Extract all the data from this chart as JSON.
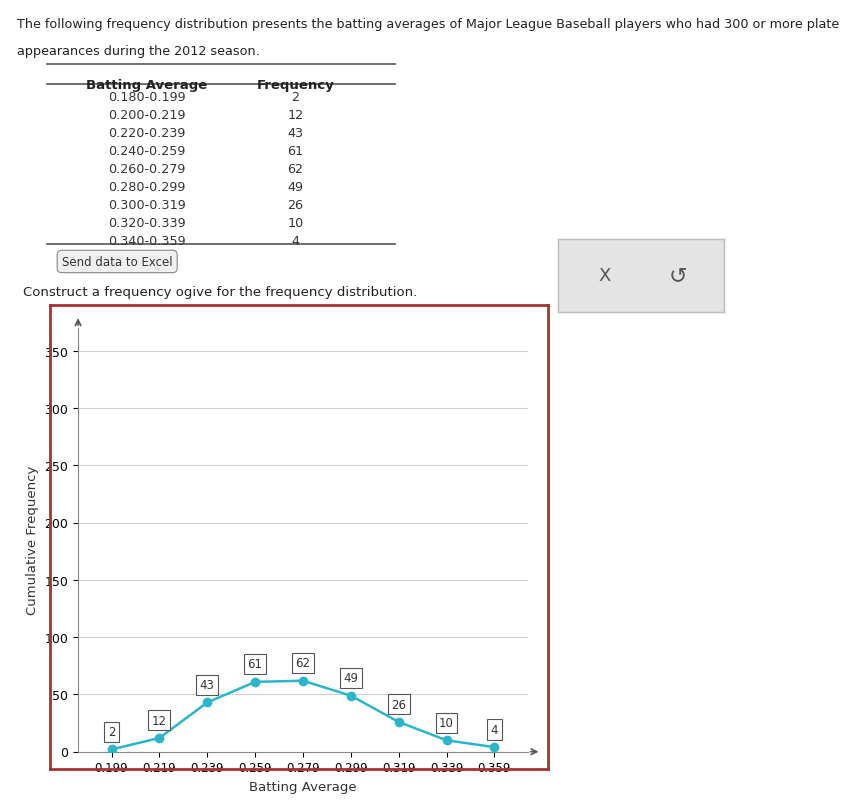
{
  "description_text_line1": "The following frequency distribution presents the batting averages of Major League Baseball players who had 300 or more plate",
  "description_text_line2": "appearances during the 2012 season.",
  "table_headers": [
    "Batting Average",
    "Frequency"
  ],
  "table_rows": [
    [
      "0.180-0.199",
      "2"
    ],
    [
      "0.200-0.219",
      "12"
    ],
    [
      "0.220-0.239",
      "43"
    ],
    [
      "0.240-0.259",
      "61"
    ],
    [
      "0.260-0.279",
      "62"
    ],
    [
      "0.280-0.299",
      "49"
    ],
    [
      "0.300-0.319",
      "26"
    ],
    [
      "0.320-0.339",
      "10"
    ],
    [
      "0.340-0.359",
      "4"
    ]
  ],
  "button_text": "Send data to Excel",
  "instruction_text": "Construct a frequency ogive for the frequency distribution.",
  "x_labels": [
    "0.199",
    "0.219",
    "0.239",
    "0.259",
    "0.279",
    "0.299",
    "0.319",
    "0.339",
    "0.359"
  ],
  "x_values": [
    0.199,
    0.219,
    0.239,
    0.259,
    0.279,
    0.299,
    0.319,
    0.339,
    0.359
  ],
  "y_values": [
    2,
    12,
    43,
    61,
    62,
    49,
    26,
    10,
    4
  ],
  "y_labels": [
    0,
    50,
    100,
    150,
    200,
    250,
    300,
    350
  ],
  "xlabel": "Batting Average",
  "ylabel": "Cumulative Frequency",
  "line_color": "#2bb5c8",
  "marker_color": "#2bb5c8",
  "bg_color": "#ffffff",
  "plot_bg_color": "#ffffff",
  "border_color": "#a83232",
  "grid_color": "#d0d0d0",
  "ylim": [
    0,
    370
  ],
  "annotation_box_color": "#ffffff",
  "annotation_box_edge": "#555555",
  "annotation_text_color": "#333333"
}
